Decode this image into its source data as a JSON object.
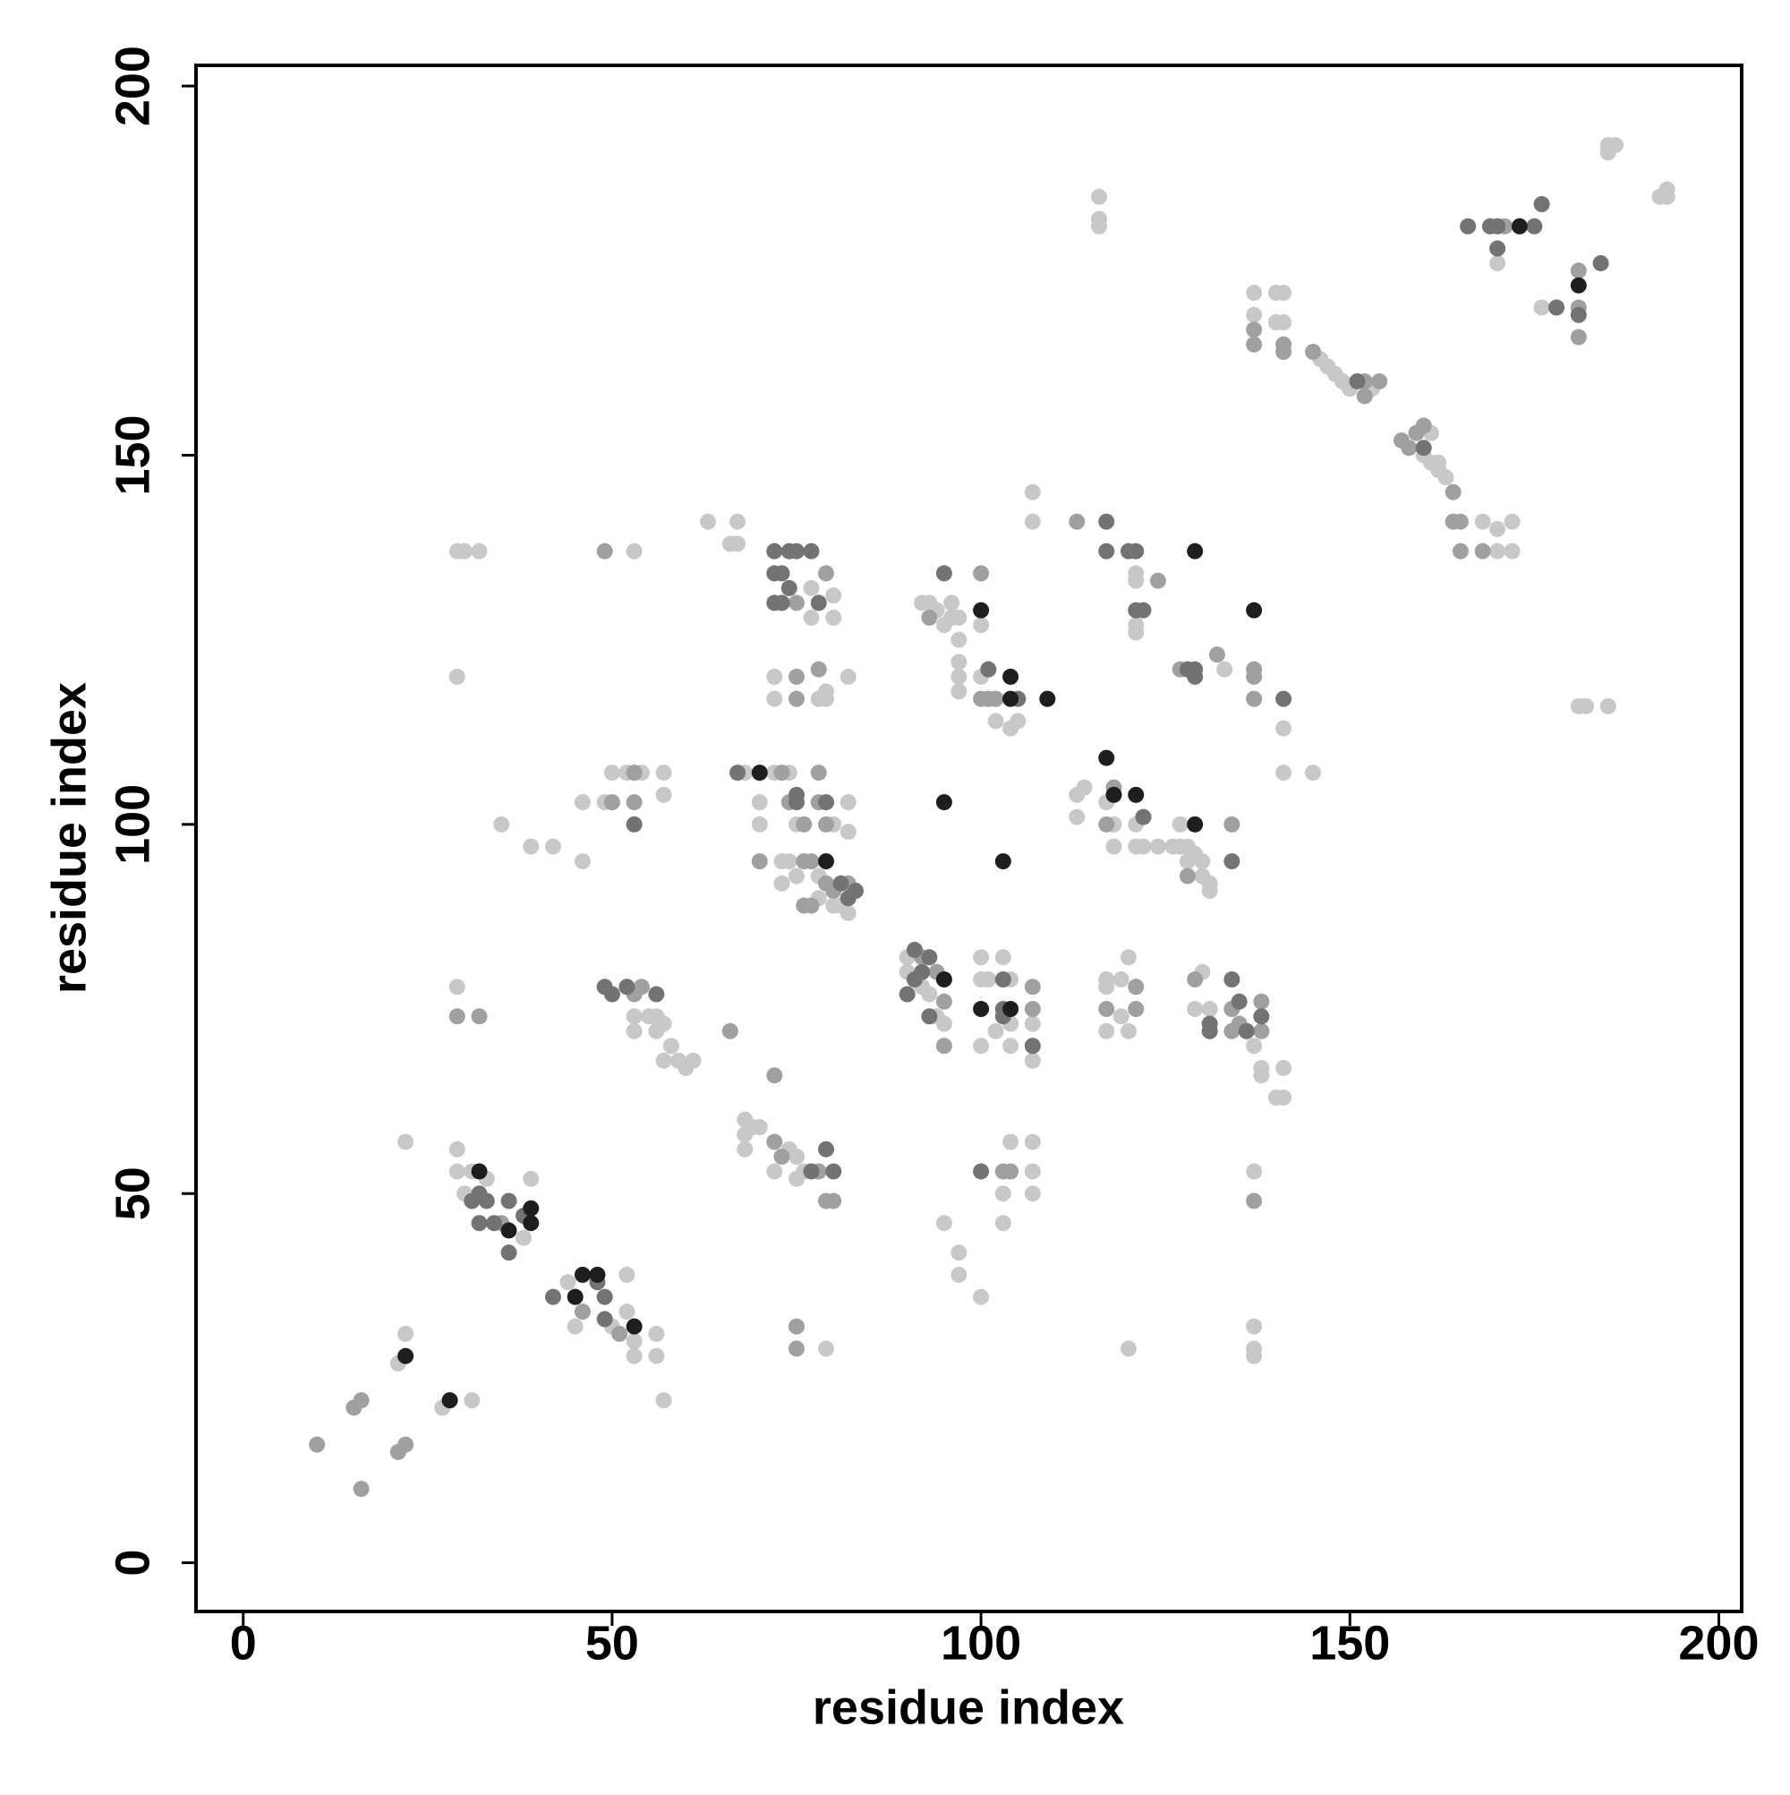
{
  "chart_data": {
    "type": "scatter",
    "xlabel": "residue index",
    "ylabel": "residue index",
    "xlim": [
      -6.4,
      203.1
    ],
    "ylim": [
      -6.6,
      202.8
    ],
    "xticks": [
      0,
      50,
      100,
      150,
      200
    ],
    "yticks": [
      0,
      50,
      100,
      150,
      200
    ],
    "grid": false,
    "series": [
      {
        "color": "#c8c8c8",
        "x": [
          21,
          22,
          27,
          31,
          22,
          29,
          29,
          31,
          38,
          39,
          33,
          30,
          44,
          45,
          50,
          52,
          52,
          53,
          53,
          56,
          56,
          57,
          29,
          53,
          53,
          55,
          56,
          56,
          57,
          58,
          59,
          60,
          61,
          57,
          68,
          68,
          69,
          70,
          68,
          74,
          75,
          75,
          76,
          72,
          79,
          29,
          30,
          32,
          29,
          53,
          63,
          67,
          66,
          67,
          77,
          80,
          80,
          77,
          72,
          79,
          82,
          72,
          78,
          79,
          35,
          39,
          42,
          46,
          46,
          49,
          50,
          52,
          54,
          57,
          57,
          68,
          70,
          70,
          72,
          74,
          75,
          80,
          82,
          82,
          73,
          74,
          75,
          78,
          78,
          80,
          81,
          82,
          73,
          90,
          90,
          92,
          93,
          94,
          95,
          100,
          100,
          101,
          103,
          104,
          102,
          104,
          104,
          107,
          107,
          100,
          104,
          103,
          103,
          107,
          107,
          107,
          95,
          97,
          97,
          100,
          117,
          117,
          119,
          120,
          119,
          117,
          120,
          120,
          130,
          129,
          131,
          137,
          138,
          138,
          141,
          140,
          141,
          137,
          137,
          137,
          137,
          92,
          93,
          94,
          96,
          96,
          97,
          95,
          97,
          97,
          97,
          97,
          100,
          100,
          102,
          104,
          105,
          107,
          107,
          121,
          121,
          121,
          121,
          113,
          114,
          117,
          118,
          121,
          121,
          122,
          124,
          113,
          118,
          126,
          127,
          128,
          127,
          128,
          129,
          130,
          131,
          130,
          131,
          128,
          133,
          141,
          141,
          145,
          116,
          116,
          116,
          137,
          140,
          141,
          137,
          140,
          141,
          146,
          147,
          148,
          149,
          150,
          153,
          161,
          160,
          161,
          162,
          162,
          163,
          168,
          170,
          172,
          172,
          170,
          170,
          176,
          185,
          186,
          185,
          192,
          193,
          193,
          181,
          182,
          185
        ],
        "values": [
          27,
          31,
          21,
          22,
          57,
          56,
          53,
          53,
          44,
          52,
          52,
          50,
          38,
          32,
          32,
          34,
          39,
          30,
          28,
          31,
          28,
          22,
          78,
          74,
          72,
          74,
          72,
          74,
          73,
          70,
          68,
          67,
          68,
          68,
          60,
          58,
          59,
          59,
          56,
          56,
          55,
          52,
          53,
          53,
          29,
          137,
          137,
          137,
          120,
          137,
          141,
          141,
          138,
          138,
          132,
          131,
          128,
          128,
          120,
          118,
          120,
          117,
          117,
          117,
          100,
          97,
          97,
          95,
          103,
          103,
          107,
          107,
          107,
          107,
          104,
          107,
          103,
          100,
          107,
          107,
          100,
          100,
          103,
          99,
          95,
          95,
          93,
          93,
          90,
          89,
          89,
          88,
          92,
          82,
          80,
          78,
          77,
          74,
          73,
          82,
          79,
          79,
          82,
          79,
          72,
          70,
          73,
          73,
          68,
          70,
          57,
          50,
          46,
          57,
          53,
          50,
          46,
          42,
          39,
          36,
          79,
          78,
          79,
          82,
          74,
          72,
          72,
          29,
          80,
          75,
          75,
          70,
          67,
          66,
          67,
          63,
          63,
          53,
          32,
          29,
          28,
          130,
          130,
          129,
          130,
          128,
          128,
          127,
          125,
          122,
          120,
          118,
          127,
          120,
          114,
          113,
          114,
          145,
          141,
          134,
          133,
          127,
          126,
          104,
          105,
          103,
          100,
          100,
          97,
          97,
          97,
          101,
          97,
          97,
          97,
          97,
          100,
          95,
          96,
          93,
          92,
          95,
          91,
          121,
          121,
          113,
          107,
          107,
          185,
          182,
          181,
          172,
          172,
          172,
          169,
          168,
          168,
          163,
          162,
          161,
          160,
          159,
          159,
          153,
          150,
          149,
          149,
          148,
          147,
          141,
          137,
          141,
          137,
          140,
          176,
          170,
          191,
          192,
          192,
          185,
          186,
          185,
          116,
          116,
          116
        ]
      },
      {
        "color": "#a0a0a0",
        "x": [
          10,
          16,
          15,
          16,
          21,
          22,
          35,
          46,
          51,
          29,
          32,
          53,
          54,
          66,
          72,
          72,
          73,
          78,
          79,
          80,
          75,
          75,
          49,
          75,
          79,
          75,
          78,
          75,
          50,
          53,
          53,
          73,
          74,
          76,
          78,
          78,
          79,
          70,
          76,
          77,
          79,
          76,
          77,
          80,
          82,
          92,
          94,
          95,
          95,
          107,
          107,
          103,
          104,
          121,
          117,
          121,
          129,
          134,
          135,
          134,
          138,
          138,
          137,
          93,
          100,
          100,
          101,
          102,
          113,
          124,
          117,
          118,
          128,
          134,
          127,
          132,
          137,
          137,
          137,
          137,
          137,
          141,
          141,
          145,
          152,
          152,
          154,
          157,
          158,
          159,
          160,
          164,
          164,
          165,
          165,
          168,
          171,
          181,
          181,
          181
        ],
        "values": [
          16,
          10,
          21,
          22,
          15,
          16,
          46,
          34,
          31,
          74,
          74,
          77,
          78,
          72,
          66,
          57,
          55,
          53,
          49,
          49,
          32,
          29,
          137,
          130,
          134,
          120,
          121,
          117,
          103,
          107,
          103,
          107,
          103,
          100,
          107,
          103,
          100,
          95,
          95,
          95,
          92,
          89,
          89,
          91,
          92,
          82,
          80,
          76,
          70,
          78,
          75,
          53,
          53,
          78,
          75,
          75,
          79,
          75,
          73,
          72,
          76,
          72,
          49,
          128,
          134,
          117,
          117,
          117,
          141,
          133,
          100,
          105,
          93,
          100,
          121,
          123,
          121,
          120,
          117,
          167,
          165,
          165,
          164,
          164,
          160,
          158,
          160,
          152,
          151,
          153,
          154,
          145,
          141,
          141,
          137,
          137,
          181,
          175,
          170,
          166
        ]
      },
      {
        "color": "#737373",
        "x": [
          31,
          32,
          33,
          32,
          34,
          36,
          36,
          38,
          42,
          48,
          49,
          49,
          49,
          50,
          52,
          56,
          77,
          79,
          80,
          72,
          74,
          75,
          77,
          72,
          73,
          74,
          72,
          73,
          78,
          53,
          67,
          75,
          75,
          79,
          81,
          82,
          83,
          91,
          92,
          93,
          91,
          90,
          93,
          103,
          103,
          103,
          107,
          100,
          131,
          131,
          134,
          135,
          136,
          138,
          95,
          101,
          105,
          117,
          117,
          120,
          121,
          121,
          122,
          122,
          134,
          128,
          129,
          129,
          141,
          151,
          160,
          166,
          169,
          170,
          170,
          175,
          176,
          178,
          181,
          184
        ],
        "values": [
          49,
          50,
          49,
          46,
          46,
          49,
          42,
          47,
          36,
          38,
          36,
          33,
          78,
          77,
          78,
          77,
          53,
          56,
          53,
          137,
          137,
          137,
          137,
          134,
          134,
          132,
          130,
          130,
          130,
          100,
          107,
          104,
          103,
          103,
          92,
          90,
          91,
          83,
          80,
          82,
          79,
          77,
          74,
          79,
          75,
          74,
          70,
          53,
          73,
          72,
          79,
          76,
          72,
          74,
          134,
          121,
          117,
          141,
          137,
          137,
          137,
          129,
          129,
          101,
          95,
          121,
          121,
          120,
          117,
          160,
          151,
          181,
          181,
          181,
          178,
          181,
          184,
          170,
          169,
          176
        ]
      },
      {
        "color": "#1e1e1e",
        "x": [
          22,
          28,
          32,
          36,
          39,
          39,
          45,
          46,
          48,
          53,
          70,
          79,
          95,
          100,
          104,
          100,
          104,
          104,
          109,
          129,
          118,
          121,
          117,
          95,
          103,
          129,
          137,
          173,
          181
        ],
        "values": [
          28,
          22,
          53,
          45,
          48,
          46,
          36,
          39,
          39,
          32,
          107,
          95,
          79,
          75,
          75,
          129,
          120,
          117,
          117,
          137,
          104,
          104,
          109,
          103,
          95,
          100,
          129,
          181,
          173
        ]
      }
    ]
  }
}
